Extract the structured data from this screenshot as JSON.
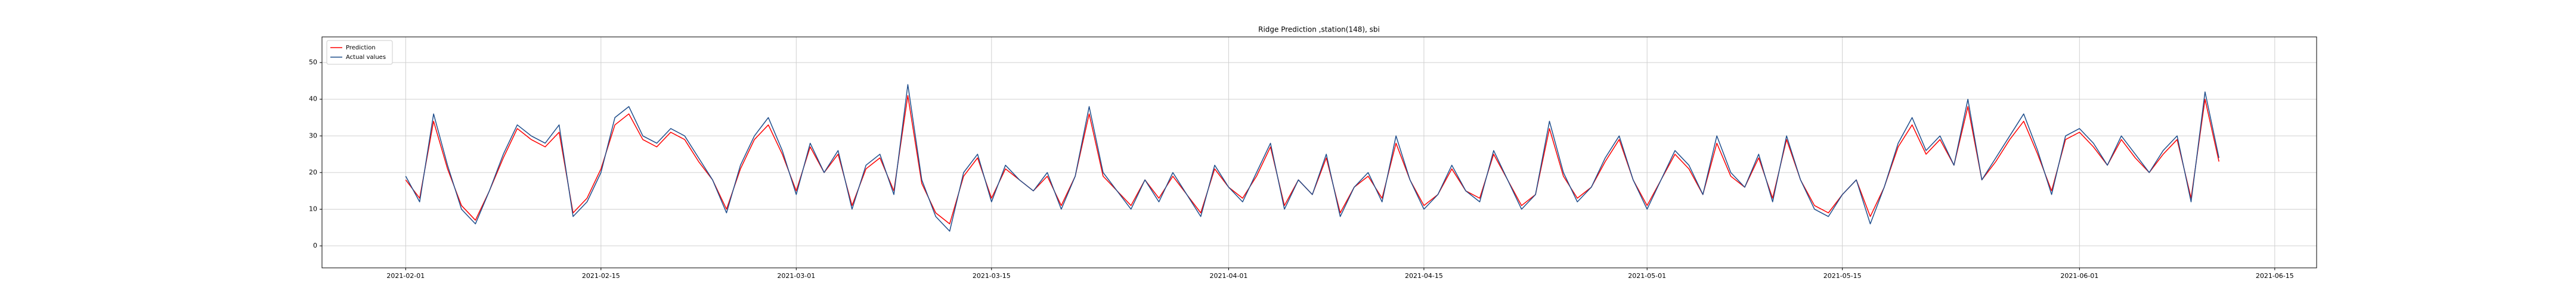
{
  "chart_data": {
    "type": "line",
    "title": "Ridge Prediction ,station(148), sbi",
    "x": [
      "2021-02-01",
      "2021-02-02",
      "2021-02-03",
      "2021-02-04",
      "2021-02-05",
      "2021-02-06",
      "2021-02-07",
      "2021-02-08",
      "2021-02-09",
      "2021-02-10",
      "2021-02-11",
      "2021-02-12",
      "2021-02-13",
      "2021-02-14",
      "2021-02-15",
      "2021-02-16",
      "2021-02-17",
      "2021-02-18",
      "2021-02-19",
      "2021-02-20",
      "2021-02-21",
      "2021-02-22",
      "2021-02-23",
      "2021-02-24",
      "2021-02-25",
      "2021-02-26",
      "2021-02-27",
      "2021-02-28",
      "2021-03-01",
      "2021-03-02",
      "2021-03-03",
      "2021-03-04",
      "2021-03-05",
      "2021-03-06",
      "2021-03-07",
      "2021-03-08",
      "2021-03-09",
      "2021-03-10",
      "2021-03-11",
      "2021-03-12",
      "2021-03-13",
      "2021-03-14",
      "2021-03-15",
      "2021-03-16",
      "2021-03-17",
      "2021-03-18",
      "2021-03-19",
      "2021-03-20",
      "2021-03-21",
      "2021-03-22",
      "2021-03-23",
      "2021-03-24",
      "2021-03-25",
      "2021-03-26",
      "2021-03-27",
      "2021-03-28",
      "2021-03-29",
      "2021-03-30",
      "2021-03-31",
      "2021-04-01",
      "2021-04-02",
      "2021-04-03",
      "2021-04-04",
      "2021-04-05",
      "2021-04-06",
      "2021-04-07",
      "2021-04-08",
      "2021-04-09",
      "2021-04-10",
      "2021-04-11",
      "2021-04-12",
      "2021-04-13",
      "2021-04-14",
      "2021-04-15",
      "2021-04-16",
      "2021-04-17",
      "2021-04-18",
      "2021-04-19",
      "2021-04-20",
      "2021-04-21",
      "2021-04-22",
      "2021-04-23",
      "2021-04-24",
      "2021-04-25",
      "2021-04-26",
      "2021-04-27",
      "2021-04-28",
      "2021-04-29",
      "2021-04-30",
      "2021-05-01",
      "2021-05-02",
      "2021-05-03",
      "2021-05-04",
      "2021-05-05",
      "2021-05-06",
      "2021-05-07",
      "2021-05-08",
      "2021-05-09",
      "2021-05-10",
      "2021-05-11",
      "2021-05-12",
      "2021-05-13",
      "2021-05-14",
      "2021-05-15",
      "2021-05-16",
      "2021-05-17",
      "2021-05-18",
      "2021-05-19",
      "2021-05-20",
      "2021-05-21",
      "2021-05-22",
      "2021-05-23",
      "2021-05-24",
      "2021-05-25",
      "2021-05-26",
      "2021-05-27",
      "2021-05-28",
      "2021-05-29",
      "2021-05-30",
      "2021-05-31",
      "2021-06-01",
      "2021-06-02",
      "2021-06-03",
      "2021-06-04",
      "2021-06-05",
      "2021-06-06",
      "2021-06-07",
      "2021-06-08",
      "2021-06-09",
      "2021-06-10",
      "2021-06-11"
    ],
    "series": [
      {
        "name": "Prediction",
        "color": "#ff0000",
        "values": [
          18,
          13,
          34,
          21,
          11,
          7,
          15,
          24,
          32,
          29,
          27,
          31,
          9,
          13,
          21,
          33,
          36,
          29,
          27,
          31,
          29,
          23,
          18,
          10,
          21,
          29,
          33,
          25,
          15,
          27,
          20,
          25,
          11,
          21,
          24,
          15,
          41,
          17,
          9,
          6,
          19,
          24,
          13,
          21,
          18,
          15,
          19,
          11,
          19,
          36,
          19,
          15,
          11,
          18,
          13,
          19,
          14,
          9,
          21,
          16,
          13,
          19,
          27,
          11,
          18,
          14,
          24,
          9,
          16,
          19,
          13,
          28,
          18,
          11,
          14,
          21,
          15,
          13,
          25,
          18,
          11,
          14,
          32,
          19,
          13,
          16,
          23,
          29,
          18,
          11,
          18,
          25,
          21,
          14,
          28,
          19,
          16,
          24,
          13,
          29,
          18,
          11,
          9,
          14,
          18,
          8,
          16,
          27,
          33,
          25,
          29,
          22,
          38,
          18,
          23,
          29,
          34,
          25,
          15,
          29,
          31,
          27,
          22,
          29,
          24,
          20,
          25,
          29,
          13,
          40,
          23
        ]
      },
      {
        "name": "Actual values",
        "color": "#1f4e8c",
        "values": [
          19,
          12,
          36,
          22,
          10,
          6,
          15,
          25,
          33,
          30,
          28,
          33,
          8,
          12,
          20,
          35,
          38,
          30,
          28,
          32,
          30,
          24,
          18,
          9,
          22,
          30,
          35,
          26,
          14,
          28,
          20,
          26,
          10,
          22,
          25,
          14,
          44,
          18,
          8,
          4,
          20,
          25,
          12,
          22,
          18,
          15,
          20,
          10,
          19,
          38,
          20,
          15,
          10,
          18,
          12,
          20,
          14,
          8,
          22,
          16,
          12,
          20,
          28,
          10,
          18,
          14,
          25,
          8,
          16,
          20,
          12,
          30,
          18,
          10,
          14,
          22,
          15,
          12,
          26,
          18,
          10,
          14,
          34,
          20,
          12,
          16,
          24,
          30,
          18,
          10,
          18,
          26,
          22,
          14,
          30,
          20,
          16,
          25,
          12,
          30,
          18,
          10,
          8,
          14,
          18,
          6,
          16,
          28,
          35,
          26,
          30,
          22,
          40,
          18,
          24,
          30,
          36,
          26,
          14,
          30,
          32,
          28,
          22,
          30,
          25,
          20,
          26,
          30,
          12,
          42,
          24
        ]
      }
    ],
    "xlim": [
      "2021-01-26",
      "2021-06-18"
    ],
    "xticks": [
      "2021-02-01",
      "2021-02-15",
      "2021-03-01",
      "2021-03-15",
      "2021-04-01",
      "2021-04-15",
      "2021-05-01",
      "2021-05-15",
      "2021-06-01",
      "2021-06-15"
    ],
    "ylim": [
      -6,
      57
    ],
    "yticks": [
      0,
      10,
      20,
      30,
      40,
      50
    ],
    "grid": true,
    "legend": "upper left"
  }
}
